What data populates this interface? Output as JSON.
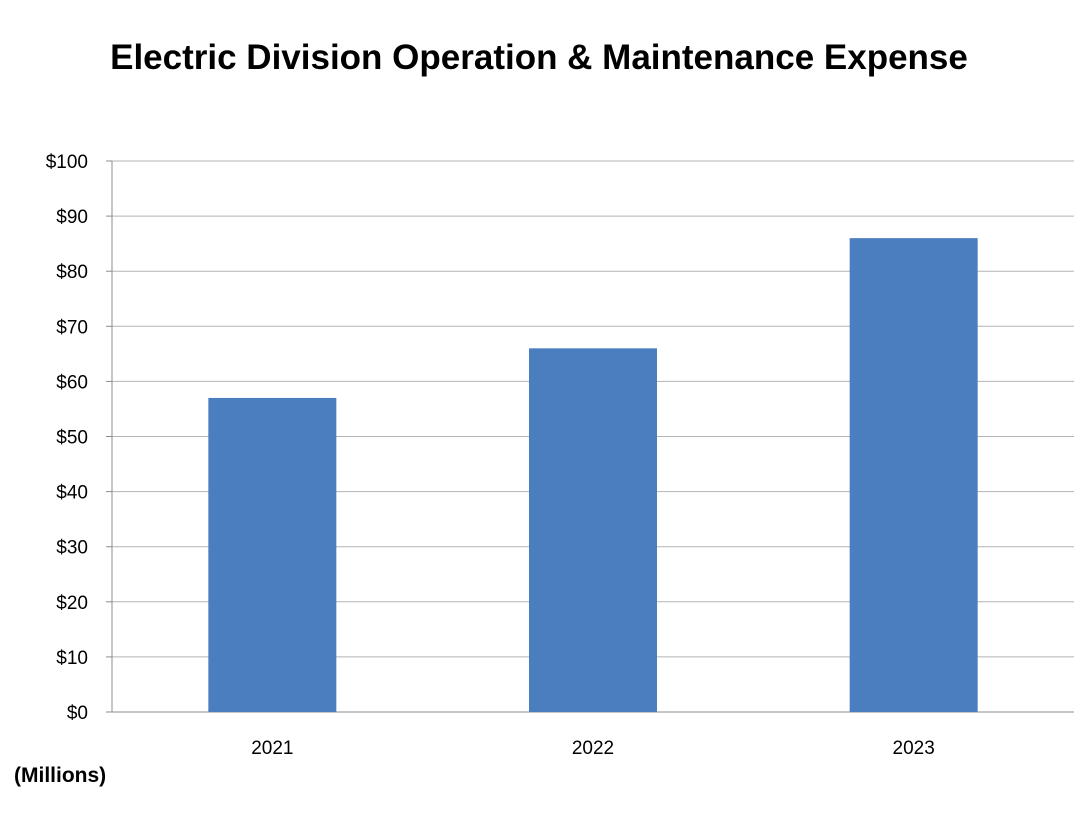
{
  "chart_data": {
    "type": "bar",
    "title": "Electric Division Operation & Maintenance Expense",
    "units_label": "(Millions)",
    "categories": [
      "2021",
      "2022",
      "2023"
    ],
    "series": [
      {
        "values": [
          57,
          66,
          86
        ]
      }
    ],
    "ylim": [
      0,
      100
    ],
    "y_ticks": [
      0,
      10,
      20,
      30,
      40,
      50,
      60,
      70,
      80,
      90,
      100
    ],
    "y_tick_labels": [
      "$0",
      "$10",
      "$20",
      "$30",
      "$40",
      "$50",
      "$60",
      "$70",
      "$80",
      "$90",
      "$100"
    ],
    "grid": true,
    "legend": "none",
    "bar_color": "#4a7ebf",
    "gridline_color": "#b3b3b3"
  }
}
